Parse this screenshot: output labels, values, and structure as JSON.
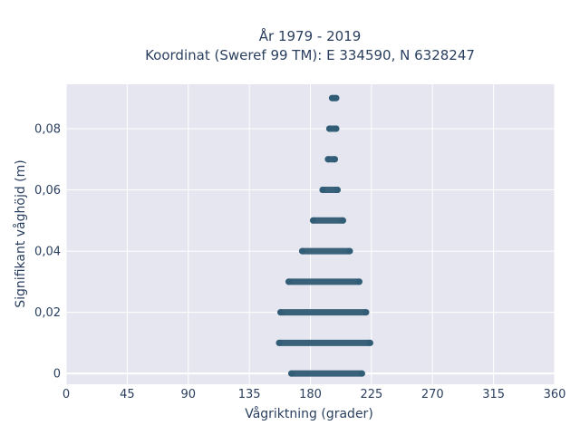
{
  "chart_data": {
    "type": "scatter",
    "title_line1": "År 1979 - 2019",
    "title_line2": "Koordinat (Sweref 99 TM): E 334590, N 6328247",
    "xlabel": "Vågriktning (grader)",
    "ylabel": "Signifikant våghöjd (m)",
    "xlim": [
      0,
      360
    ],
    "ylim": [
      -0.0035,
      0.0945
    ],
    "xticks": [
      0,
      45,
      90,
      135,
      180,
      225,
      270,
      315,
      360
    ],
    "xtick_labels": [
      "0",
      "45",
      "90",
      "135",
      "180",
      "225",
      "270",
      "315",
      "360"
    ],
    "yticks": [
      0,
      0.02,
      0.04,
      0.06,
      0.08
    ],
    "ytick_labels": [
      "0",
      "0,02",
      "0,04",
      "0,06",
      "0,08"
    ],
    "grid": true,
    "marker_color": "#2f5a73",
    "plot_bg": "#e5e6ef",
    "bands": [
      {
        "y": 0.0,
        "x_min": 166,
        "x_max": 218
      },
      {
        "y": 0.01,
        "x_min": 157,
        "x_max": 224
      },
      {
        "y": 0.02,
        "x_min": 158,
        "x_max": 221
      },
      {
        "y": 0.03,
        "x_min": 164,
        "x_max": 216
      },
      {
        "y": 0.04,
        "x_min": 174,
        "x_max": 209
      },
      {
        "y": 0.05,
        "x_min": 182,
        "x_max": 204
      },
      {
        "y": 0.06,
        "x_min": 189,
        "x_max": 200
      },
      {
        "y": 0.07,
        "x_min": 193,
        "x_max": 198
      },
      {
        "y": 0.08,
        "x_min": 194,
        "x_max": 199
      },
      {
        "y": 0.09,
        "x_min": 196,
        "x_max": 199
      }
    ]
  }
}
